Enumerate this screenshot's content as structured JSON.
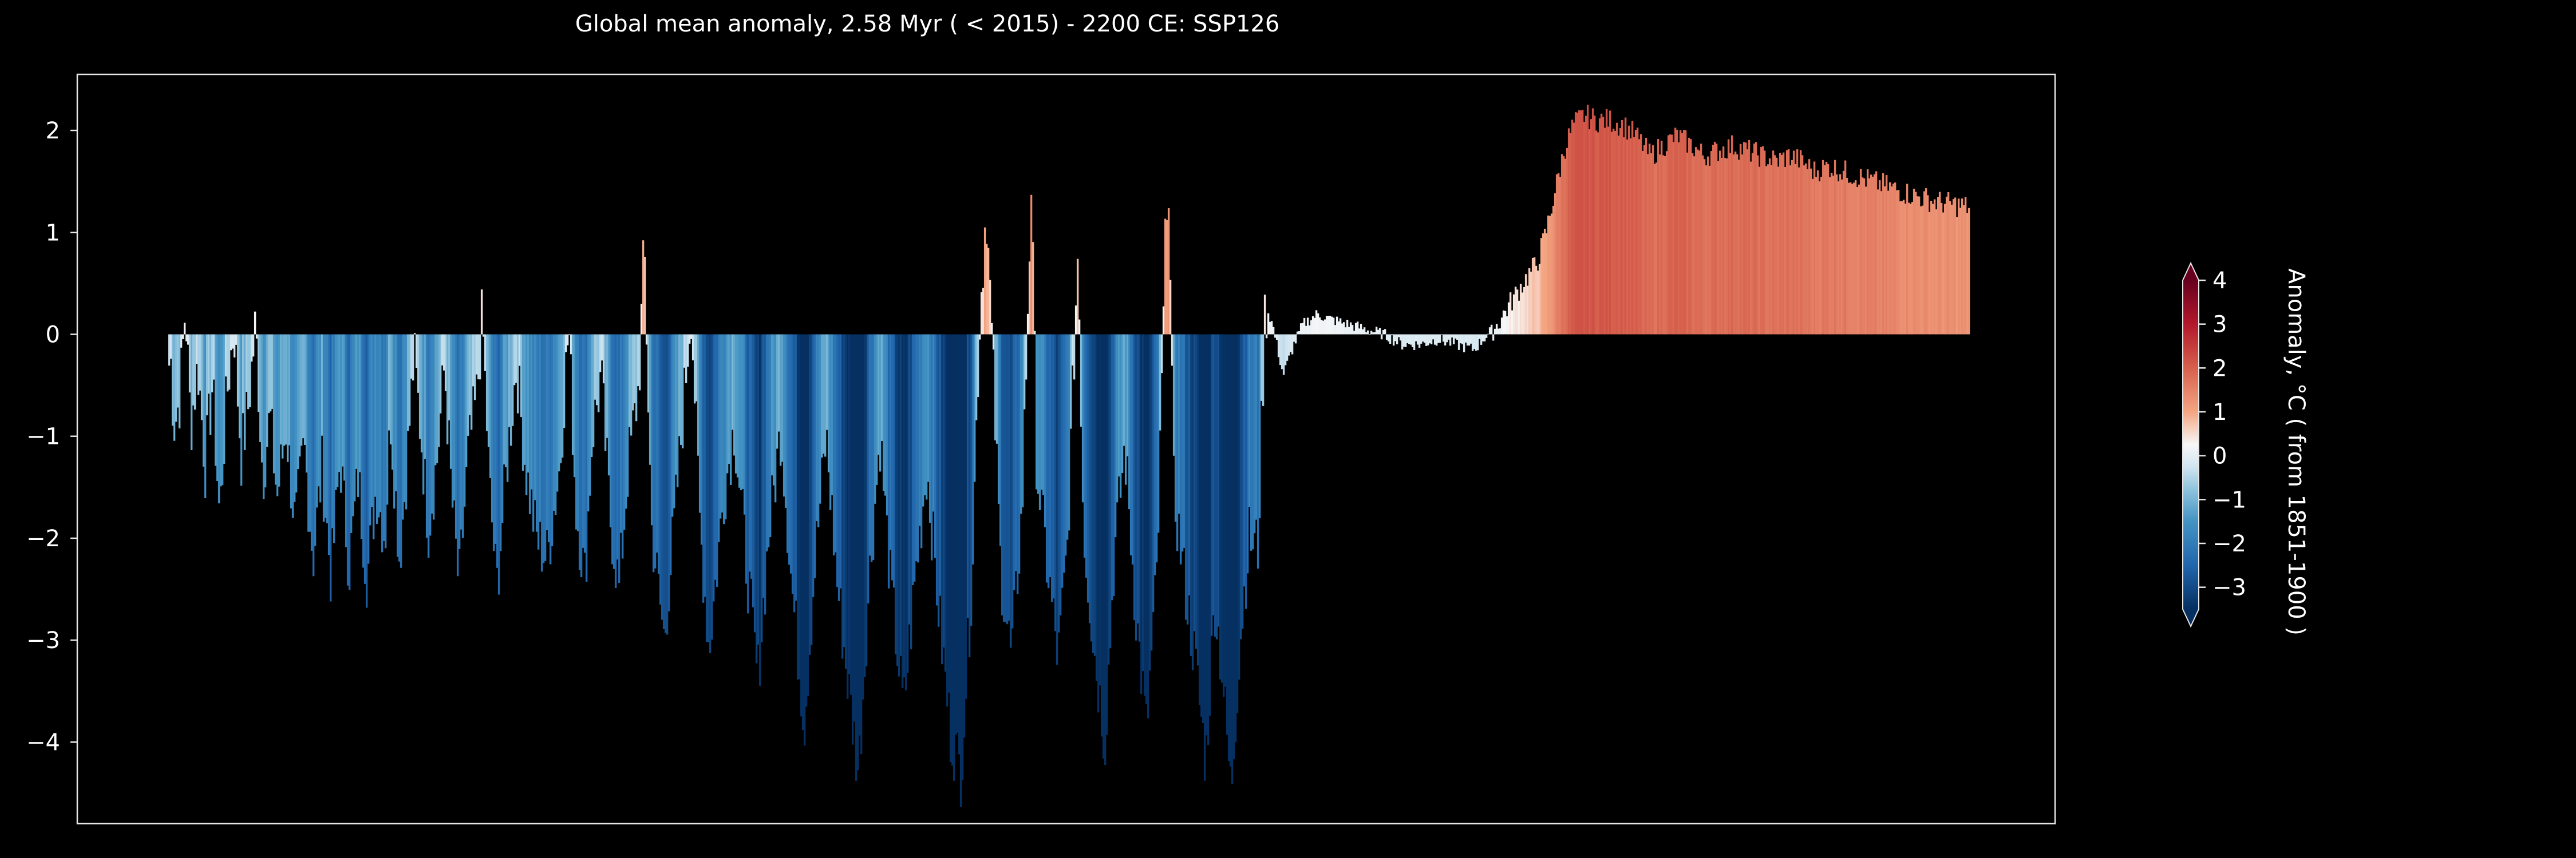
{
  "chart_data": {
    "type": "bar",
    "title": "Global mean anomaly, 2.58 Myr ( < 2015) - 2200 CE: SSP126",
    "xlabel": "",
    "ylabel": "",
    "ylim": [
      -4.8,
      2.55
    ],
    "yticks": [
      2,
      1,
      0,
      -1,
      -2,
      -3,
      -4
    ],
    "ytick_labels": [
      "2",
      "1",
      "0",
      "−1",
      "−2",
      "−3",
      "−4"
    ],
    "x_axis_ticks": "none",
    "grid": false,
    "bar_baseline": 0,
    "bar_color_by": "value",
    "colorbar": {
      "label": "Anomaly, °C ( from 1851-1900 )",
      "range": [
        -3.5,
        4.0
      ],
      "ticks": [
        4,
        3,
        2,
        1,
        0,
        -1,
        -2,
        -3
      ],
      "tick_labels": [
        "4",
        "3",
        "2",
        "1",
        "0",
        "−1",
        "−2",
        "−3"
      ],
      "extend": "both",
      "colormap_stops": [
        {
          "value": -3.5,
          "color": "#053061"
        },
        {
          "value": -2.5,
          "color": "#2166ac"
        },
        {
          "value": -1.5,
          "color": "#4393c3"
        },
        {
          "value": -0.75,
          "color": "#92c5de"
        },
        {
          "value": -0.25,
          "color": "#d1e5f0"
        },
        {
          "value": 0.25,
          "color": "#f7f7f7"
        },
        {
          "value": 1.0,
          "color": "#f4a582"
        },
        {
          "value": 2.0,
          "color": "#d6604d"
        },
        {
          "value": 3.0,
          "color": "#b2182b"
        },
        {
          "value": 4.0,
          "color": "#67001f"
        }
      ]
    },
    "x_extent": [
      0,
      100
    ],
    "x_plotted_range": [
      4.6,
      95.6
    ],
    "series_keypoints": [
      [
        0.0,
        -0.3
      ],
      [
        0.05,
        0.9
      ],
      [
        0.1,
        -0.4
      ],
      [
        0.3,
        -0.9
      ],
      [
        0.6,
        -0.6
      ],
      [
        0.9,
        0.3
      ],
      [
        1.2,
        -0.9
      ],
      [
        1.6,
        -0.3
      ],
      [
        2.0,
        -1.3
      ],
      [
        2.4,
        -0.5
      ],
      [
        2.8,
        -1.8
      ],
      [
        3.2,
        -0.6
      ],
      [
        3.6,
        0.1
      ],
      [
        4.0,
        -1.2
      ],
      [
        4.4,
        -0.7
      ],
      [
        4.8,
        0.1
      ],
      [
        5.2,
        -1.4
      ],
      [
        5.6,
        -0.8
      ],
      [
        6.0,
        -1.6
      ],
      [
        6.5,
        -0.9
      ],
      [
        7.0,
        -1.9
      ],
      [
        7.5,
        -1.1
      ],
      [
        8.0,
        -2.2
      ],
      [
        8.5,
        -1.3
      ],
      [
        9.0,
        -2.4
      ],
      [
        9.5,
        -1.2
      ],
      [
        10.0,
        -2.3
      ],
      [
        10.5,
        -1.4
      ],
      [
        11.0,
        -2.4
      ],
      [
        11.5,
        -1.5
      ],
      [
        12.0,
        -2.0
      ],
      [
        12.3,
        -0.8
      ],
      [
        12.8,
        -2.2
      ],
      [
        13.2,
        -1.3
      ],
      [
        13.6,
        -0.2
      ],
      [
        14.0,
        -1.0
      ],
      [
        14.4,
        -1.9
      ],
      [
        14.9,
        -1.2
      ],
      [
        15.3,
        -0.3
      ],
      [
        15.7,
        -1.6
      ],
      [
        16.1,
        -2.5
      ],
      [
        16.6,
        -1.2
      ],
      [
        17.1,
        -0.6
      ],
      [
        17.4,
        0.2
      ],
      [
        17.8,
        -1.5
      ],
      [
        18.2,
        -2.5
      ],
      [
        18.8,
        -1.2
      ],
      [
        19.3,
        -0.3
      ],
      [
        19.8,
        -1.3
      ],
      [
        20.4,
        -2.0
      ],
      [
        21.0,
        -2.2
      ],
      [
        21.7,
        -1.3
      ],
      [
        22.2,
        0.1
      ],
      [
        22.6,
        -1.7
      ],
      [
        23.1,
        -2.4
      ],
      [
        23.5,
        -1.0
      ],
      [
        24.0,
        -0.4
      ],
      [
        24.5,
        -1.8
      ],
      [
        25.0,
        -2.5
      ],
      [
        25.5,
        -1.3
      ],
      [
        26.1,
        -0.5
      ],
      [
        26.4,
        0.9
      ],
      [
        26.8,
        -1.9
      ],
      [
        27.5,
        -3.0
      ],
      [
        28.0,
        -2.0
      ],
      [
        28.5,
        -0.9
      ],
      [
        29.0,
        0.3
      ],
      [
        29.5,
        -1.9
      ],
      [
        30.0,
        -3.1
      ],
      [
        30.8,
        -1.6
      ],
      [
        31.4,
        -0.9
      ],
      [
        32.0,
        -2.1
      ],
      [
        32.7,
        -3.4
      ],
      [
        33.3,
        -2.0
      ],
      [
        34.0,
        -0.9
      ],
      [
        34.6,
        -2.5
      ],
      [
        35.3,
        -3.8
      ],
      [
        35.9,
        -2.2
      ],
      [
        36.5,
        -1.0
      ],
      [
        37.1,
        -2.4
      ],
      [
        37.7,
        -3.4
      ],
      [
        38.3,
        -4.3
      ],
      [
        38.9,
        -2.4
      ],
      [
        39.5,
        -1.0
      ],
      [
        40.1,
        -2.5
      ],
      [
        40.8,
        -3.7
      ],
      [
        41.5,
        -2.3
      ],
      [
        42.1,
        -1.3
      ],
      [
        42.8,
        -2.8
      ],
      [
        43.4,
        -3.9
      ],
      [
        44.0,
        -4.3
      ],
      [
        44.6,
        -2.4
      ],
      [
        45.0,
        0.0
      ],
      [
        45.4,
        1.3
      ],
      [
        45.7,
        0.0
      ],
      [
        46.2,
        -2.3
      ],
      [
        46.8,
        -3.2
      ],
      [
        47.4,
        -1.7
      ],
      [
        47.9,
        1.5
      ],
      [
        48.2,
        -1.3
      ],
      [
        48.8,
        -2.3
      ],
      [
        49.4,
        -3.2
      ],
      [
        49.9,
        -2.1
      ],
      [
        50.5,
        0.9
      ],
      [
        50.8,
        -1.9
      ],
      [
        51.4,
        -3.1
      ],
      [
        52.0,
        -4.0
      ],
      [
        52.5,
        -2.2
      ],
      [
        53.1,
        -1.1
      ],
      [
        53.7,
        -2.7
      ],
      [
        54.3,
        -3.9
      ],
      [
        54.9,
        -2.3
      ],
      [
        55.5,
        1.9
      ],
      [
        55.8,
        -1.5
      ],
      [
        56.4,
        -2.4
      ],
      [
        57.0,
        -3.2
      ],
      [
        57.6,
        -4.2
      ],
      [
        58.1,
        -2.6
      ],
      [
        58.5,
        -3.3
      ],
      [
        59.0,
        -4.5
      ],
      [
        59.5,
        -3.0
      ],
      [
        60.0,
        -2.0
      ],
      [
        60.5,
        -2.1
      ],
      [
        60.9,
        0.3
      ],
      [
        61.3,
        0.1
      ],
      [
        61.9,
        -0.4
      ],
      [
        62.5,
        -0.1
      ],
      [
        63.0,
        0.1
      ],
      [
        63.8,
        0.2
      ],
      [
        64.5,
        0.15
      ],
      [
        65.5,
        0.1
      ],
      [
        66.5,
        0.05
      ],
      [
        67.5,
        0.0
      ],
      [
        68.5,
        -0.1
      ],
      [
        69.5,
        -0.1
      ],
      [
        70.5,
        -0.05
      ],
      [
        71.5,
        -0.1
      ],
      [
        72.5,
        -0.15
      ],
      [
        73.0,
        -0.05
      ],
      [
        73.8,
        0.1
      ],
      [
        74.5,
        0.3
      ],
      [
        75.2,
        0.5
      ],
      [
        76.0,
        0.7
      ],
      [
        76.5,
        1.0
      ],
      [
        77.0,
        1.4
      ],
      [
        77.5,
        1.8
      ],
      [
        78.0,
        2.05
      ],
      [
        78.6,
        2.15
      ],
      [
        79.3,
        2.1
      ],
      [
        80.0,
        2.1
      ],
      [
        80.8,
        2.05
      ],
      [
        81.5,
        1.95
      ],
      [
        82.3,
        1.75
      ],
      [
        83.0,
        1.85
      ],
      [
        83.8,
        1.95
      ],
      [
        84.6,
        1.85
      ],
      [
        85.3,
        1.75
      ],
      [
        86.0,
        1.8
      ],
      [
        86.9,
        1.85
      ],
      [
        87.7,
        1.8
      ],
      [
        88.5,
        1.75
      ],
      [
        89.3,
        1.7
      ],
      [
        90.0,
        1.75
      ],
      [
        90.7,
        1.7
      ],
      [
        91.4,
        1.6
      ],
      [
        92.2,
        1.65
      ],
      [
        93.0,
        1.6
      ],
      [
        93.8,
        1.55
      ],
      [
        94.6,
        1.5
      ],
      [
        95.5,
        1.45
      ],
      [
        96.3,
        1.4
      ],
      [
        97.2,
        1.35
      ],
      [
        98.2,
        1.3
      ],
      [
        100.0,
        1.25
      ]
    ]
  }
}
